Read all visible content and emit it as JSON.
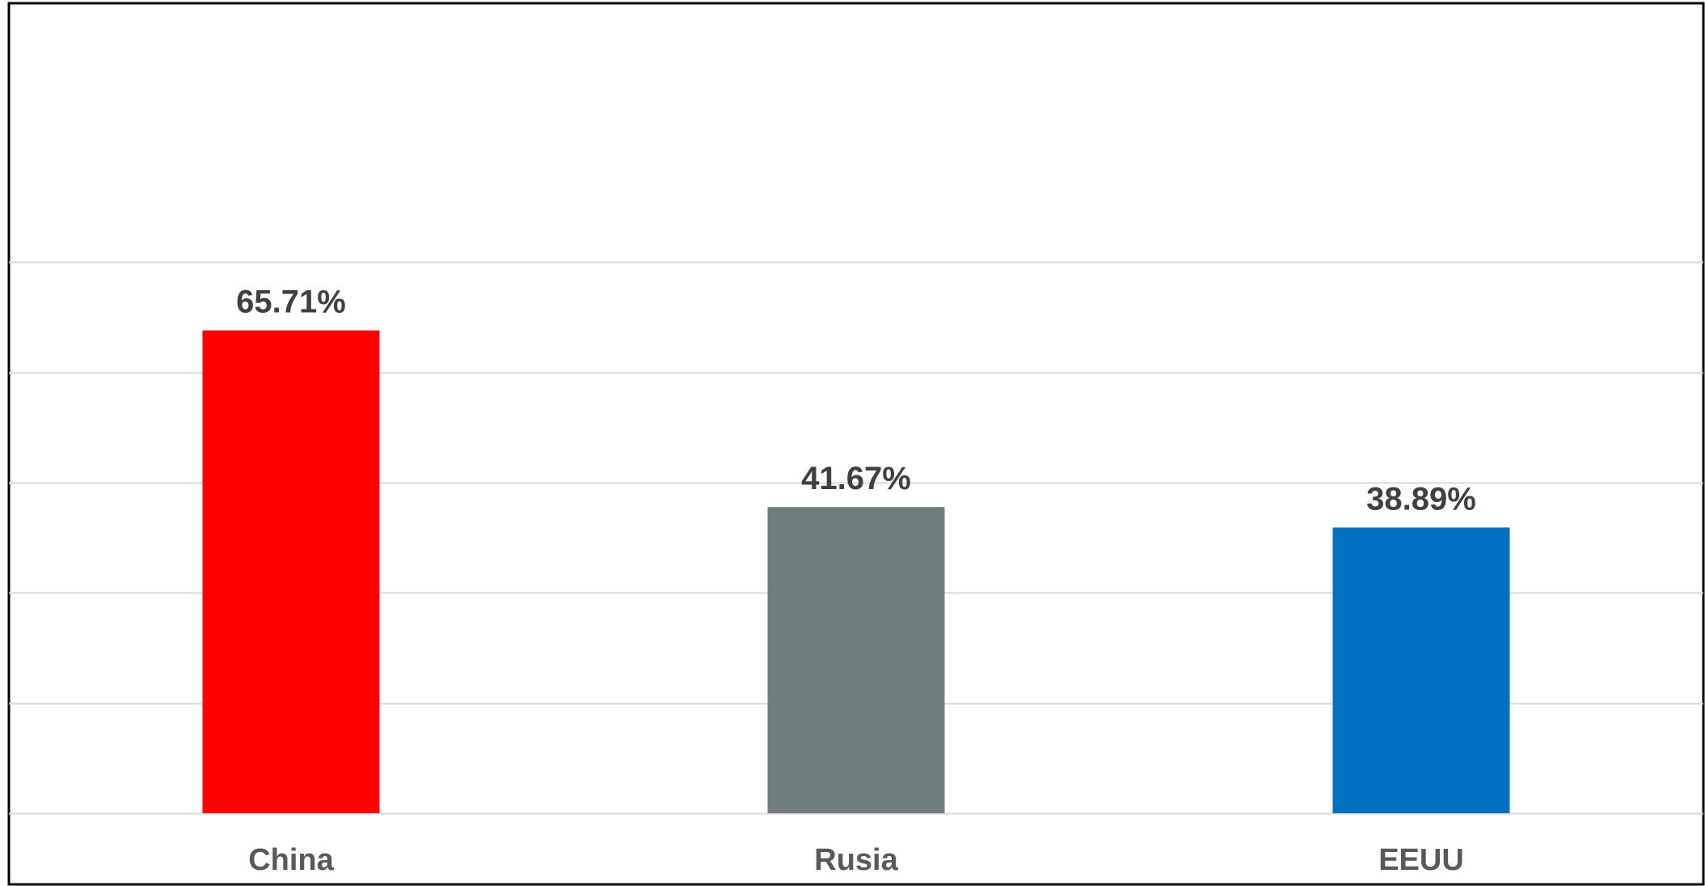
{
  "chart_data": {
    "type": "bar",
    "categories": [
      "China",
      "Rusia",
      "EEUU"
    ],
    "values": [
      65.71,
      41.67,
      38.89
    ],
    "data_labels": [
      "65.71%",
      "41.67%",
      "38.89%"
    ],
    "colors": [
      "#FF0000",
      "#6F7D7D",
      "#0070C0"
    ],
    "ylim": [
      0,
      90
    ],
    "gridline_step": 15,
    "grid": true,
    "title": "",
    "xlabel": "",
    "ylabel": "",
    "legend": "none",
    "grid_color": "#D9D9D9",
    "frame_color": "#000000"
  }
}
